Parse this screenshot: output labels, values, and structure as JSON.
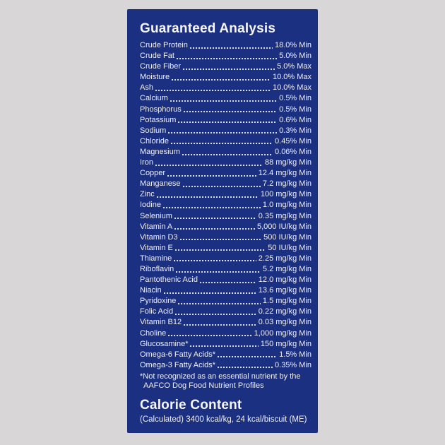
{
  "page": {
    "background_color": "#d9d6d7"
  },
  "panel": {
    "background_color": "#1b3080",
    "text_color": "#f1f0f8",
    "title": "Guaranteed Analysis",
    "rows": [
      {
        "label": "Crude Protein",
        "value": "18.0% Min"
      },
      {
        "label": "Crude Fat",
        "value": "5.0% Min"
      },
      {
        "label": "Crude Fiber",
        "value": "5.0% Max"
      },
      {
        "label": "Moisture",
        "value": "10.0% Max"
      },
      {
        "label": "Ash",
        "value": "10.0% Max"
      },
      {
        "label": "Calcium",
        "value": "0.5% Min"
      },
      {
        "label": "Phosphorus",
        "value": "0.5% Min"
      },
      {
        "label": "Potassium",
        "value": "0.6% Min"
      },
      {
        "label": "Sodium",
        "value": "0.3% Min"
      },
      {
        "label": "Chloride",
        "value": "0.45% Min"
      },
      {
        "label": "Magnesium",
        "value": "0.06% Min"
      },
      {
        "label": "Iron",
        "value": "88 mg/kg Min"
      },
      {
        "label": "Copper",
        "value": "12.4 mg/kg Min"
      },
      {
        "label": "Manganese",
        "value": "7.2 mg/kg Min"
      },
      {
        "label": "Zinc",
        "value": "100 mg/kg Min"
      },
      {
        "label": "Iodine",
        "value": "1.0 mg/kg Min"
      },
      {
        "label": "Selenium",
        "value": "0.35 mg/kg Min"
      },
      {
        "label": "Vitamin A",
        "value": "5,000 IU/kg Min"
      },
      {
        "label": "Vitamin D3",
        "value": "500 IU/kg Min"
      },
      {
        "label": "Vitamin E",
        "value": "50 IU/kg Min"
      },
      {
        "label": "Thiamine",
        "value": "2.25 mg/kg Min"
      },
      {
        "label": "Riboflavin",
        "value": "5.2 mg/kg Min"
      },
      {
        "label": "Pantothenic Acid",
        "value": "12.0 mg/kg Min"
      },
      {
        "label": "Niacin",
        "value": "13.6 mg/kg Min"
      },
      {
        "label": "Pyridoxine",
        "value": "1.5 mg/kg Min"
      },
      {
        "label": "Folic Acid",
        "value": "0.22 mg/kg Min"
      },
      {
        "label": "Vitamin B12",
        "value": "0.03 mg/kg Min"
      },
      {
        "label": "Choline",
        "value": "1,000 mg/kg Min"
      },
      {
        "label": "Glucosamine*",
        "value": "150 mg/kg Min"
      },
      {
        "label": "Omega-6 Fatty Acids*",
        "value": "1.5% Min"
      },
      {
        "label": "Omega-3 Fatty Acids*",
        "value": "0.35% Min"
      }
    ],
    "footnote": {
      "line1": "*Not recognized as an essential nutrient by the",
      "line2": "AAFCO Dog Food Nutrient Profiles"
    },
    "calorie": {
      "title": "Calorie Content",
      "text": "(Calculated) 3400 kcal/kg, 24 kcal/biscuit (ME)"
    }
  }
}
